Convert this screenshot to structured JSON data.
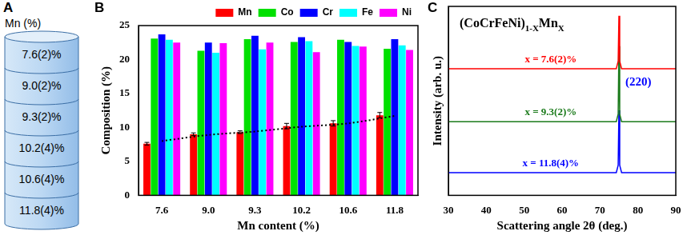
{
  "panel_labels": [
    "A",
    "B",
    "C"
  ],
  "diagram": {
    "title": "Mn (%)",
    "layers": [
      "7.6(2)%",
      "9.0(2)%",
      "9.3(2)%",
      "10.2(4)%",
      "10.6(4)%",
      "11.8(4)%"
    ]
  },
  "chart_data": [
    {
      "type": "bar",
      "categories": [
        "7.6",
        "9.0",
        "9.3",
        "10.2",
        "10.6",
        "11.8"
      ],
      "x_label": "Mn content (%)",
      "y_label": "Composition (%)",
      "ylim": [
        0,
        25
      ],
      "yticks": [
        0,
        5,
        10,
        15,
        20,
        25
      ],
      "grid": false,
      "legend": "top-right",
      "series": [
        {
          "name": "Mn",
          "color": "#ff0000",
          "values": [
            7.6,
            9.0,
            9.3,
            10.2,
            10.6,
            11.8
          ],
          "errors": [
            0.2,
            0.2,
            0.2,
            0.4,
            0.4,
            0.4
          ]
        },
        {
          "name": "Co",
          "color": "#00e000",
          "values": [
            23.1,
            21.3,
            23.0,
            22.6,
            22.9,
            21.6
          ]
        },
        {
          "name": "Cr",
          "color": "#0000ff",
          "values": [
            23.7,
            22.5,
            23.5,
            23.3,
            22.6,
            23.0
          ]
        },
        {
          "name": "Fe",
          "color": "#00ffff",
          "values": [
            22.9,
            21.0,
            21.5,
            22.7,
            22.0,
            22.1
          ]
        },
        {
          "name": "Ni",
          "color": "#ff00ff",
          "values": [
            22.5,
            22.4,
            22.5,
            21.1,
            21.9,
            21.4
          ]
        }
      ],
      "trend": {
        "type": "line",
        "color": "#000000",
        "line_style": "dotted",
        "values": [
          8.0,
          8.9,
          9.4,
          10.1,
          10.6,
          11.7
        ]
      }
    },
    {
      "type": "line",
      "x_label": "Scattering angle 2θ (deg.)",
      "y_label": "Intensity (arb. u.)",
      "xlim": [
        30,
        90
      ],
      "xticks": [
        30,
        40,
        50,
        60,
        70,
        80,
        90
      ],
      "ylim": [
        0,
        10
      ],
      "tick_labels": "x",
      "grid": false,
      "legend": "inline",
      "title_parts": [
        {
          "text": "(CoCrFeNi)"
        },
        {
          "text": "1-X",
          "sub": true
        },
        {
          "text": "Mn"
        },
        {
          "text": "X",
          "sub": true
        }
      ],
      "annotations": [
        {
          "text": "(220)",
          "color": "#0000ff"
        }
      ],
      "x": [
        30,
        74.3,
        74.8,
        75.0,
        75.2,
        75.7,
        90
      ],
      "series": [
        {
          "name": "x = 7.6(2)%",
          "color": "#ff0000",
          "values": [
            6.7,
            6.7,
            7.1,
            9.5,
            7.1,
            6.7,
            6.7
          ]
        },
        {
          "name": "x = 9.3(2)%",
          "color": "#1a7a1a",
          "values": [
            3.9,
            3.9,
            4.3,
            7.9,
            4.3,
            3.9,
            3.9
          ]
        },
        {
          "name": "x = 11.8(4)%",
          "color": "#0000ff",
          "values": [
            1.2,
            1.2,
            1.6,
            4.5,
            1.6,
            1.2,
            1.2
          ]
        }
      ]
    }
  ]
}
